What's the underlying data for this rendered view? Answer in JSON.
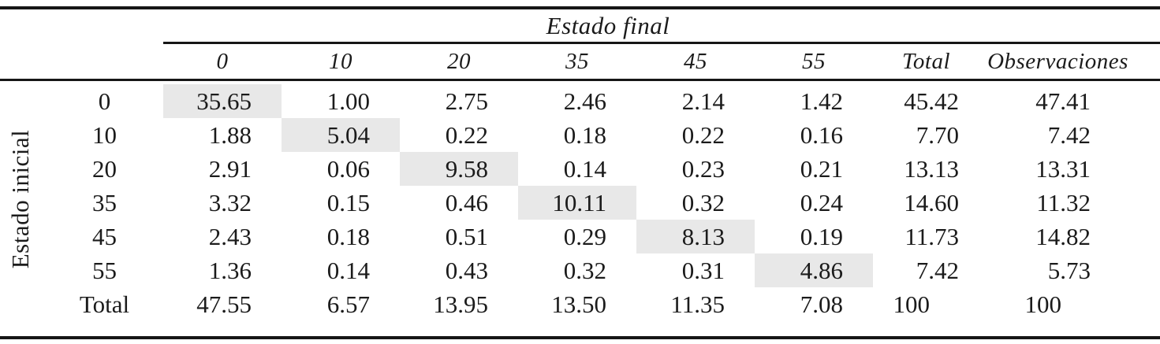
{
  "table": {
    "col_axis_title": "Estado final",
    "row_axis_title": "Estado inicial",
    "columns": [
      "0",
      "10",
      "20",
      "35",
      "45",
      "55",
      "Total",
      "Observaciones"
    ],
    "rows": [
      {
        "label": "0",
        "values": [
          "35.65",
          "1.00",
          "2.75",
          "2.46",
          "2.14",
          "1.42",
          "45.42",
          "47.41"
        ],
        "highlight_col": 0
      },
      {
        "label": "10",
        "values": [
          "1.88",
          "5.04",
          "0.22",
          "0.18",
          "0.22",
          "0.16",
          "7.70",
          "7.42"
        ],
        "highlight_col": 1
      },
      {
        "label": "20",
        "values": [
          "2.91",
          "0.06",
          "9.58",
          "0.14",
          "0.23",
          "0.21",
          "13.13",
          "13.31"
        ],
        "highlight_col": 2
      },
      {
        "label": "35",
        "values": [
          "3.32",
          "0.15",
          "0.46",
          "10.11",
          "0.32",
          "0.24",
          "14.60",
          "11.32"
        ],
        "highlight_col": 3
      },
      {
        "label": "45",
        "values": [
          "2.43",
          "0.18",
          "0.51",
          "0.29",
          "8.13",
          "0.19",
          "11.73",
          "14.82"
        ],
        "highlight_col": 4
      },
      {
        "label": "55",
        "values": [
          "1.36",
          "0.14",
          "0.43",
          "0.32",
          "0.31",
          "4.86",
          "7.42",
          "5.73"
        ],
        "highlight_col": 5
      },
      {
        "label": "Total",
        "values": [
          "47.55",
          "6.57",
          "13.95",
          "13.50",
          "11.35",
          "7.08",
          "100",
          "100"
        ],
        "highlight_col": null
      }
    ],
    "highlight_color": "#e8e8e8",
    "text_color": "#1b1b1b",
    "rule_color": "#161616"
  }
}
